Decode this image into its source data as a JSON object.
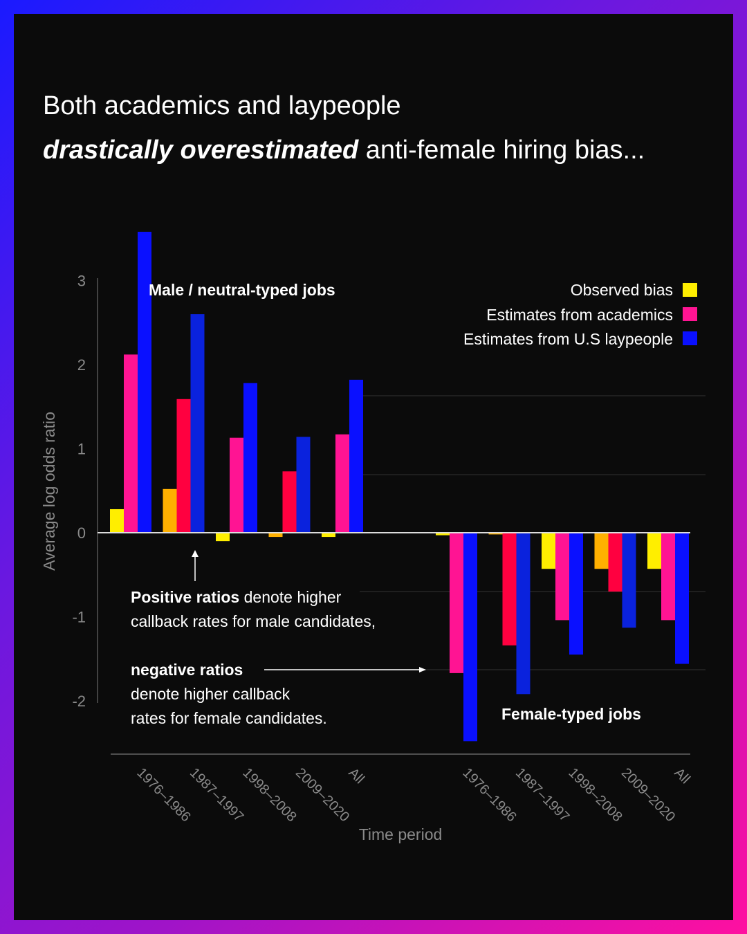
{
  "headline": {
    "line1": "Both academics and laypeople",
    "line2_emphasis": "drastically overestimated",
    "line2_rest": " anti-female hiring bias..."
  },
  "chart_data": {
    "type": "bar",
    "title": "",
    "xlabel": "Time period",
    "ylabel": "Average log odds ratio",
    "ylim": [
      -2.5,
      3.6
    ],
    "yticks": [
      "3",
      "2",
      "1",
      "0",
      "-1",
      "-2"
    ],
    "grid": true,
    "legend_position": "top-right",
    "groups": [
      {
        "label": "Male / neutral-typed jobs",
        "categories": [
          "1976–1986",
          "1987–1997",
          "1998–2008",
          "2009–2020",
          "All"
        ],
        "series": [
          {
            "name": "Observed bias",
            "values": [
              0.28,
              0.52,
              -0.1,
              -0.05,
              -0.05
            ]
          },
          {
            "name": "Estimates from academics",
            "values": [
              2.12,
              1.59,
              1.13,
              0.73,
              1.17
            ]
          },
          {
            "name": "Estimates from U.S laypeople",
            "values": [
              3.58,
              2.6,
              1.78,
              1.14,
              1.82
            ]
          }
        ]
      },
      {
        "label": "Female-typed jobs",
        "categories": [
          "1976–1986",
          "1987–1997",
          "1998–2008",
          "2009–2020",
          "All"
        ],
        "series": [
          {
            "name": "Observed bias",
            "values": [
              -0.03,
              -0.02,
              -0.43,
              -0.43,
              -0.43
            ]
          },
          {
            "name": "Estimates from academics",
            "values": [
              -1.67,
              -1.34,
              -1.04,
              -0.7,
              -1.04
            ]
          },
          {
            "name": "Estimates from U.S laypeople",
            "values": [
              -2.48,
              -1.92,
              -1.45,
              -1.13,
              -1.56
            ]
          }
        ]
      }
    ],
    "colors": {
      "observed": "#ffee00",
      "observed_alt": "#ffb000",
      "academics": "#ff1493",
      "academics_alt": "#ff0040",
      "laypeople": "#0a10ff",
      "laypeople_alt": "#0a22dd"
    },
    "annotations": {
      "positive_bold": "Positive ratios",
      "positive_rest": " denote higher",
      "positive_line2": "callback rates for male candidates,",
      "negative_bold": "negative ratios",
      "negative_line2": "denote higher callback",
      "negative_line3": "rates for female candidates."
    }
  }
}
